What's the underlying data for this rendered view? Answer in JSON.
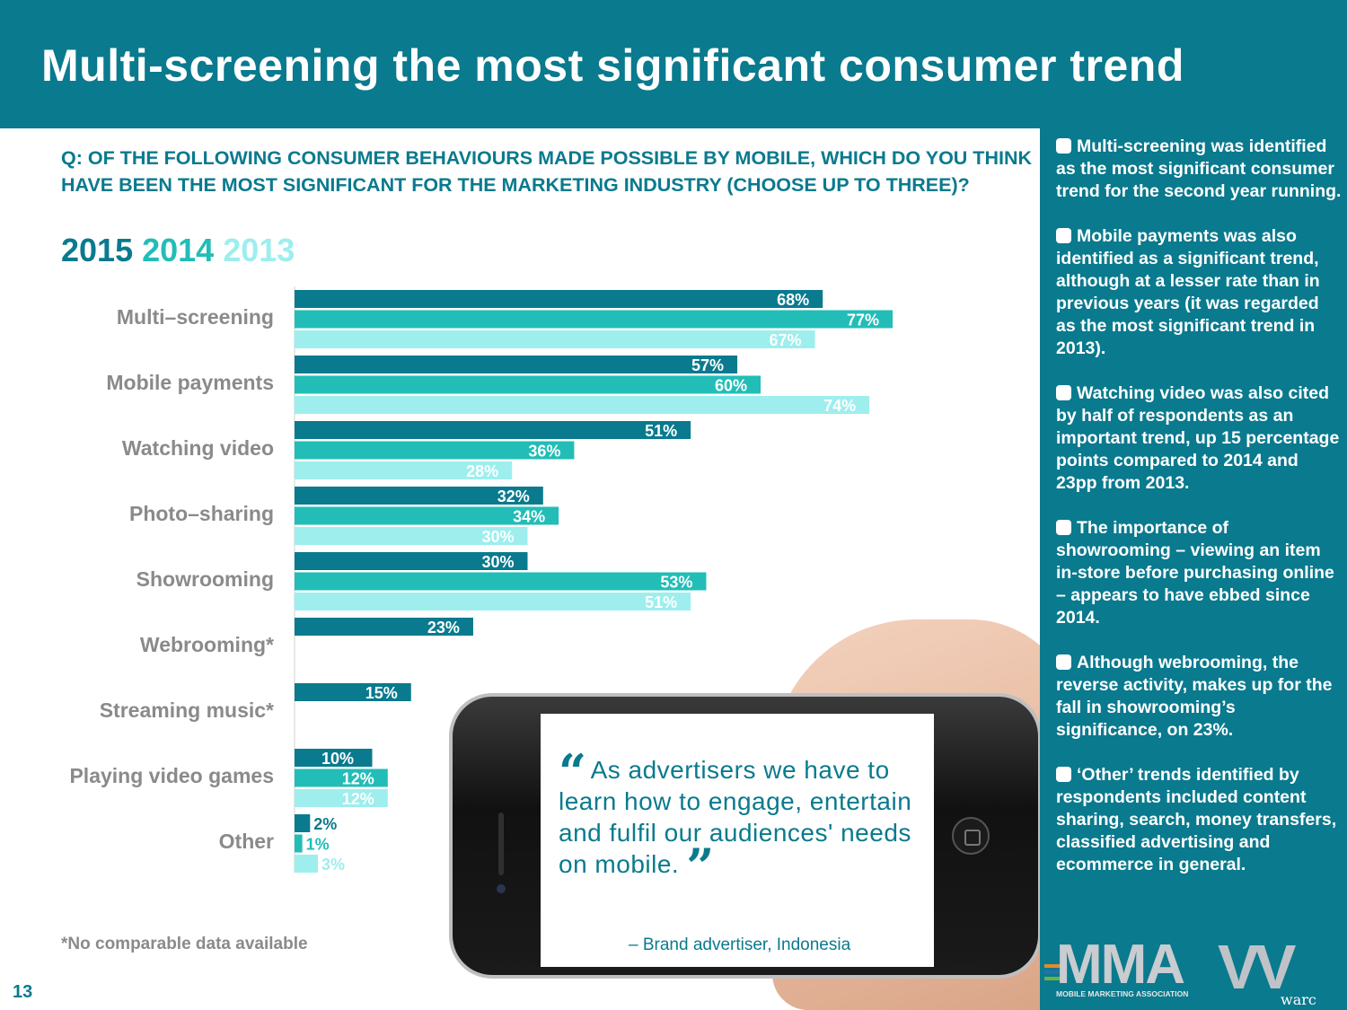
{
  "title": "Multi-screening the most significant consumer trend",
  "question": "Q: OF THE FOLLOWING CONSUMER BEHAVIOURS MADE POSSIBLE BY MOBILE, WHICH DO YOU THINK HAVE BEEN THE MOST SIGNIFICANT FOR THE MARKETING INDUSTRY (CHOOSE UP TO THREE)?",
  "legend": [
    {
      "label": "2015",
      "color": "#0a7a8e"
    },
    {
      "label": "2014",
      "color": "#22bdb7"
    },
    {
      "label": "2013",
      "color": "#9eeeee"
    }
  ],
  "chart_data": {
    "type": "bar",
    "orientation": "horizontal",
    "categories": [
      "Multi–screening",
      "Mobile payments",
      "Watching video",
      "Photo–sharing",
      "Showrooming",
      "Webrooming*",
      "Streaming music*",
      "Playing video games",
      "Other"
    ],
    "series": [
      {
        "name": "2015",
        "color": "#0a7a8e",
        "label_color": "#ffffff",
        "values": [
          68,
          57,
          51,
          32,
          30,
          23,
          15,
          10,
          2
        ]
      },
      {
        "name": "2014",
        "color": "#22bdb7",
        "label_color": "#ffffff",
        "values": [
          77,
          60,
          36,
          34,
          53,
          null,
          null,
          12,
          1
        ]
      },
      {
        "name": "2013",
        "color": "#9eeeee",
        "label_color": "#ffffff",
        "values": [
          67,
          74,
          28,
          30,
          51,
          null,
          null,
          12,
          3
        ]
      }
    ],
    "value_suffix": "%",
    "xlim": [
      0,
      100
    ],
    "grid": false,
    "legend_position": "top-left"
  },
  "footnote": "*No comparable data available",
  "page_number": "13",
  "quote": {
    "text": "As advertisers we have to learn how to engage, entertain and fulfil our audiences' needs on mobile.",
    "open_mark": "“",
    "close_mark": "”",
    "attribution": "– Brand advertiser, Indonesia"
  },
  "bullets": [
    "Multi-screening was identified as the most significant consumer trend for the second year running.",
    "Mobile payments was also identified as a significant trend, although at a lesser rate than in previous years (it was regarded as the most significant trend in 2013).",
    "Watching video was also cited by half of respondents as an important trend, up 15 percentage points compared to 2014 and 23pp from 2013.",
    "The importance of showrooming – viewing an item in-store before purchasing online – appears to have ebbed since 2014.",
    "Although webrooming, the reverse activity, makes up for the fall in showrooming’s significance, on 23%.",
    "‘Other’ trends identified by respondents included content sharing, search, money transfers, classified advertising and ecommerce in general."
  ],
  "logos": {
    "mma": "MMA",
    "mma_sub": "MOBILE MARKETING ASSOCIATION",
    "warc": "warc",
    "mma_stripe_colors": [
      "#e8892b",
      "#2a6fb0",
      "#6db33f"
    ]
  }
}
